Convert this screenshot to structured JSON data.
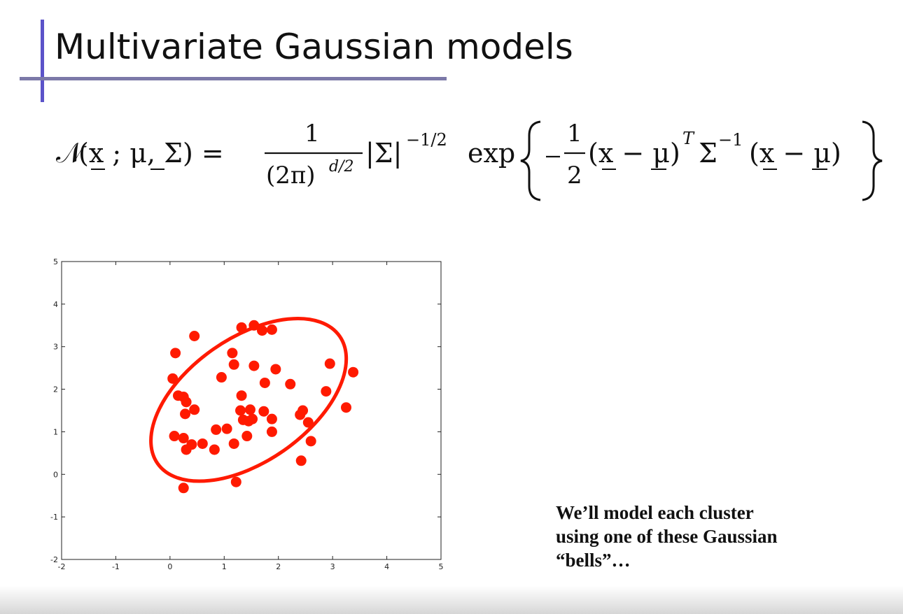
{
  "slide": {
    "title": "Multivariate Gaussian models",
    "formula": {
      "lhs_symbol": "𝒩",
      "lhs_args": "(x ; μ, Σ) =",
      "fraction_numerator": "1",
      "fraction_denominator": "(2π)",
      "denominator_exponent": "d/2",
      "det_term": "|Σ|",
      "det_exponent": "−1/2",
      "exp_name": "exp",
      "half_numerator": "1",
      "half_denominator": "2",
      "quad_left": "(x − μ)",
      "transpose": "T",
      "inv_sigma": "Σ",
      "inv_exponent": "−1",
      "quad_right": "(x − μ)"
    },
    "caption_lines": [
      "We’ll model each cluster",
      "using one of these Gaussian",
      "“bells”…"
    ],
    "colors": {
      "accent": "#5b53c9",
      "points": "#ff1a00",
      "ellipse": "#ff1a00"
    }
  },
  "chart_data": {
    "type": "scatter",
    "title": "",
    "xlabel": "",
    "ylabel": "",
    "xlim": [
      -2,
      5
    ],
    "ylim": [
      -2,
      5
    ],
    "xticks": [
      -2,
      -1,
      0,
      1,
      2,
      3,
      4,
      5
    ],
    "yticks": [
      -2,
      -1,
      0,
      1,
      2,
      3,
      4,
      5
    ],
    "grid": false,
    "points": [
      {
        "x": 0.45,
        "y": 3.25
      },
      {
        "x": 0.1,
        "y": 2.85
      },
      {
        "x": 0.05,
        "y": 2.25
      },
      {
        "x": 0.15,
        "y": 1.85
      },
      {
        "x": 0.25,
        "y": 1.82
      },
      {
        "x": 0.3,
        "y": 1.7
      },
      {
        "x": 0.45,
        "y": 1.52
      },
      {
        "x": 0.28,
        "y": 1.42
      },
      {
        "x": 0.08,
        "y": 0.9
      },
      {
        "x": 0.25,
        "y": 0.85
      },
      {
        "x": 0.4,
        "y": 0.7
      },
      {
        "x": 0.3,
        "y": 0.58
      },
      {
        "x": 0.6,
        "y": 0.72
      },
      {
        "x": 0.85,
        "y": 1.05
      },
      {
        "x": 0.82,
        "y": 0.58
      },
      {
        "x": 1.05,
        "y": 1.07
      },
      {
        "x": 1.18,
        "y": 0.72
      },
      {
        "x": 0.95,
        "y": 2.28
      },
      {
        "x": 1.15,
        "y": 2.85
      },
      {
        "x": 1.18,
        "y": 2.58
      },
      {
        "x": 1.32,
        "y": 3.45
      },
      {
        "x": 1.55,
        "y": 3.5
      },
      {
        "x": 1.7,
        "y": 3.38
      },
      {
        "x": 1.88,
        "y": 3.4
      },
      {
        "x": 1.55,
        "y": 2.55
      },
      {
        "x": 1.95,
        "y": 2.47
      },
      {
        "x": 1.75,
        "y": 2.15
      },
      {
        "x": 1.32,
        "y": 1.85
      },
      {
        "x": 1.3,
        "y": 1.5
      },
      {
        "x": 1.48,
        "y": 1.52
      },
      {
        "x": 1.35,
        "y": 1.28
      },
      {
        "x": 1.45,
        "y": 1.25
      },
      {
        "x": 1.52,
        "y": 1.3
      },
      {
        "x": 1.73,
        "y": 1.48
      },
      {
        "x": 1.88,
        "y": 1.3
      },
      {
        "x": 1.88,
        "y": 1.0
      },
      {
        "x": 1.42,
        "y": 0.9
      },
      {
        "x": 2.22,
        "y": 2.12
      },
      {
        "x": 2.4,
        "y": 1.4
      },
      {
        "x": 2.45,
        "y": 1.5
      },
      {
        "x": 2.55,
        "y": 1.22
      },
      {
        "x": 2.6,
        "y": 0.78
      },
      {
        "x": 2.42,
        "y": 0.32
      },
      {
        "x": 2.88,
        "y": 1.95
      },
      {
        "x": 2.95,
        "y": 2.6
      },
      {
        "x": 3.25,
        "y": 1.57
      },
      {
        "x": 3.38,
        "y": 2.4
      },
      {
        "x": 1.22,
        "y": -0.18
      },
      {
        "x": 0.25,
        "y": -0.32
      }
    ],
    "ellipse": {
      "cx": 1.45,
      "cy": 1.75,
      "rx": 2.05,
      "ry": 1.45,
      "angle_deg": 35
    }
  }
}
